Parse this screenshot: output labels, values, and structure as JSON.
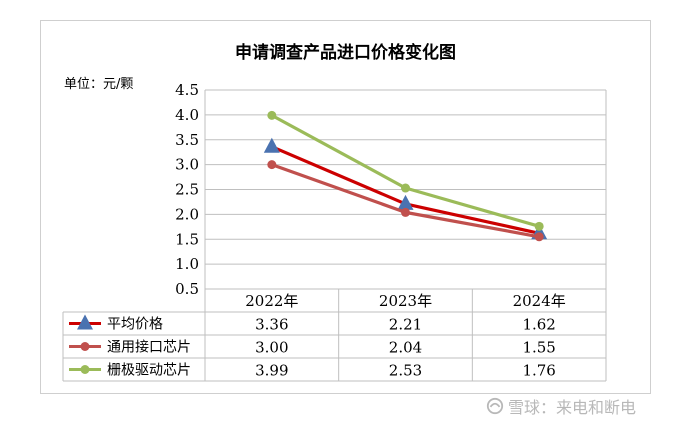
{
  "chart_data": {
    "type": "line",
    "title": "申请调查产品进口价格变化图",
    "unit_label": "单位：元/颗",
    "categories": [
      "2022年",
      "2023年",
      "2024年"
    ],
    "yticks": [
      "4.5",
      "4.0",
      "3.5",
      "3.0",
      "2.5",
      "2.0",
      "1.5",
      "1.0",
      "0.5"
    ],
    "ylim": [
      0.5,
      4.5
    ],
    "grid": true,
    "legend": "data-table",
    "series": [
      {
        "name": "平均价格",
        "values": [
          3.36,
          2.21,
          1.62
        ],
        "labels": [
          "3.36",
          "2.21",
          "1.62"
        ],
        "color": "#cc0000",
        "marker": "triangle",
        "marker_color": "#4a72b0"
      },
      {
        "name": "通用接口芯片",
        "values": [
          3.0,
          2.04,
          1.55
        ],
        "labels": [
          "3.00",
          "2.04",
          "1.55"
        ],
        "color": "#c0504d",
        "marker": "circle",
        "marker_color": "#c0504d"
      },
      {
        "name": "栅极驱动芯片",
        "values": [
          3.99,
          2.53,
          1.76
        ],
        "labels": [
          "3.99",
          "2.53",
          "1.76"
        ],
        "color": "#9bbb59",
        "marker": "circle",
        "marker_color": "#9bbb59"
      }
    ]
  },
  "watermark": {
    "text": "雪球：来电和断电",
    "icon": "snowball-logo-icon"
  }
}
